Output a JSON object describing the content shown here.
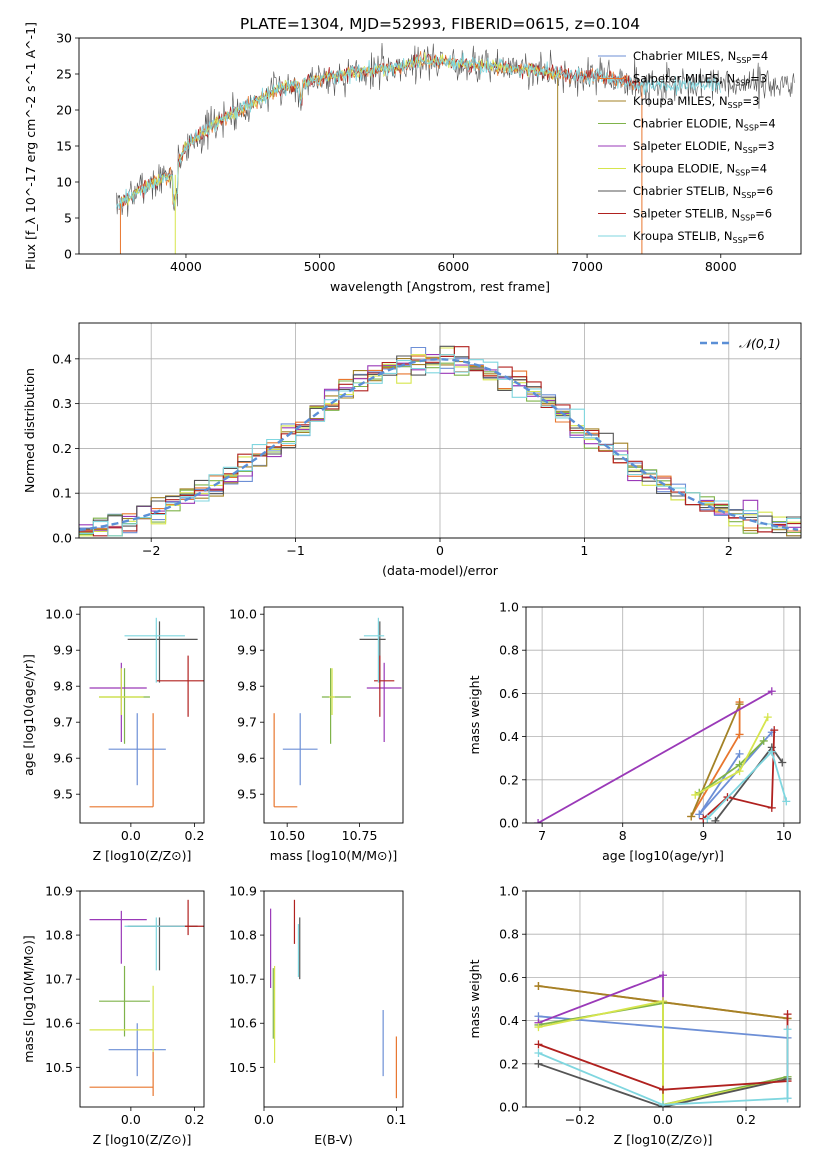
{
  "figure_title": "PLATE=1304, MJD=52993, FIBERID=0615, z=0.104",
  "colors": {
    "Chabrier MILES": "#6d8fd6",
    "Salpeter MILES": "#e8762e",
    "Kroupa MILES": "#a38226",
    "Chabrier ELODIE": "#7fb34a",
    "Salpeter ELODIE": "#9a39b8",
    "Kroupa ELODIE": "#d6e54d",
    "Chabrier STELIB": "#555555",
    "Salpeter STELIB": "#b0211f",
    "Kroupa STELIB": "#7fd6df"
  },
  "chart_data": [
    {
      "id": "spectrum",
      "type": "line",
      "title": "PLATE=1304, MJD=52993, FIBERID=0615, z=0.104",
      "xlabel": "wavelength [Angstrom, rest frame]",
      "ylabel": "Flux [f_λ 10^-17 erg cm^-2 s^-1 A^-1]",
      "xlim": [
        3200,
        8600
      ],
      "ylim": [
        0,
        30
      ],
      "xticks": [
        4000,
        5000,
        6000,
        7000,
        8000
      ],
      "yticks": [
        0,
        5,
        10,
        15,
        20,
        25,
        30
      ],
      "grid": false,
      "legend": "top-right",
      "continuum": {
        "x": [
          3500,
          3700,
          3900,
          4000,
          4100,
          4300,
          4500,
          4700,
          4850,
          5000,
          5200,
          5400,
          5600,
          5800,
          5900,
          6000,
          6200,
          6400,
          6600,
          6800,
          7000,
          7200,
          7400
        ],
        "y": [
          7,
          9.5,
          11,
          15,
          16.5,
          19,
          21,
          23,
          23.5,
          24.5,
          25,
          25.5,
          26,
          27,
          26.8,
          26.5,
          26.2,
          25.8,
          25.5,
          25,
          24.8,
          24.3,
          23.5
        ]
      },
      "series": [
        {
          "name": "Chabrier MILES",
          "nssp": "4"
        },
        {
          "name": "Salpeter MILES",
          "nssp": "3"
        },
        {
          "name": "Kroupa MILES",
          "nssp": "3"
        },
        {
          "name": "Chabrier ELODIE",
          "nssp": "4"
        },
        {
          "name": "Salpeter ELODIE",
          "nssp": "3"
        },
        {
          "name": "Kroupa ELODIE",
          "nssp": "4"
        },
        {
          "name": "Chabrier STELIB",
          "nssp": "6"
        },
        {
          "name": "Salpeter STELIB",
          "nssp": "6"
        },
        {
          "name": "Kroupa STELIB",
          "nssp": "6"
        }
      ]
    },
    {
      "id": "residuals",
      "type": "area",
      "xlabel": "(data-model)/error",
      "ylabel": "Normed distribution",
      "xlim": [
        -2.5,
        2.5
      ],
      "ylim": [
        0,
        0.48
      ],
      "xticks": [
        -2,
        -1,
        0,
        1,
        2
      ],
      "yticks": [
        0.0,
        0.1,
        0.2,
        0.3,
        0.4
      ],
      "grid": true,
      "legend": "top-right",
      "reference_label": "𝒩(0,1)",
      "bin_width": 0.1
    },
    {
      "id": "age_vs_Z",
      "type": "scatter",
      "xlabel": "Z [log10(Z/Z⊙)]",
      "ylabel": "age [log10(age/yr)]",
      "xlim": [
        -0.16,
        0.23
      ],
      "ylim": [
        9.42,
        10.02
      ],
      "xticks": [
        0.0,
        0.2
      ],
      "yticks": [
        9.5,
        9.6,
        9.7,
        9.8,
        9.9,
        10.0
      ],
      "points": [
        {
          "series": "Chabrier MILES",
          "x": 0.02,
          "y": 9.625,
          "xerr": [
            0.09,
            0.09
          ],
          "yerr": [
            0.1,
            0.1
          ]
        },
        {
          "series": "Salpeter MILES",
          "x": 0.07,
          "y": 9.465,
          "xerr": [
            0.2,
            0.0
          ],
          "yerr": [
            0.0,
            0.26
          ]
        },
        {
          "series": "Chabrier ELODIE",
          "x": -0.02,
          "y": 9.77,
          "xerr": [
            0.08,
            0.08
          ],
          "yerr": [
            0.13,
            0.08
          ]
        },
        {
          "series": "Salpeter ELODIE",
          "x": -0.03,
          "y": 9.795,
          "xerr": [
            0.1,
            0.08
          ],
          "yerr": [
            0.15,
            0.07
          ]
        },
        {
          "series": "Kroupa ELODIE",
          "x": -0.03,
          "y": 9.77,
          "xerr": [
            0.07,
            0.07
          ],
          "yerr": [
            0.05,
            0.08
          ]
        },
        {
          "series": "Chabrier STELIB",
          "x": 0.09,
          "y": 9.93,
          "xerr": [
            0.1,
            0.12
          ],
          "yerr": [
            0.12,
            0.05
          ]
        },
        {
          "series": "Salpeter STELIB",
          "x": 0.18,
          "y": 9.815,
          "xerr": [
            0.1,
            0.05
          ],
          "yerr": [
            0.1,
            0.07
          ]
        },
        {
          "series": "Kroupa STELIB",
          "x": 0.08,
          "y": 9.94,
          "xerr": [
            0.1,
            0.09
          ],
          "yerr": [
            0.13,
            0.05
          ]
        }
      ]
    },
    {
      "id": "age_vs_mass",
      "type": "scatter",
      "xlabel": "mass [log10(M/M⊙)]",
      "ylabel": "",
      "xlim": [
        10.42,
        10.9
      ],
      "ylim": [
        9.42,
        10.02
      ],
      "xticks": [
        10.5,
        10.75
      ],
      "yticks": [
        9.5,
        9.6,
        9.7,
        9.8,
        9.9,
        10.0
      ],
      "points": [
        {
          "series": "Chabrier MILES",
          "x": 10.545,
          "y": 9.625,
          "xerr": [
            0.06,
            0.06
          ],
          "yerr": [
            0.1,
            0.1
          ]
        },
        {
          "series": "Salpeter MILES",
          "x": 10.455,
          "y": 9.465,
          "xerr": [
            0.0,
            0.08
          ],
          "yerr": [
            0.0,
            0.26
          ]
        },
        {
          "series": "Chabrier ELODIE",
          "x": 10.65,
          "y": 9.77,
          "xerr": [
            0.03,
            0.07
          ],
          "yerr": [
            0.13,
            0.08
          ]
        },
        {
          "series": "Salpeter ELODIE",
          "x": 10.835,
          "y": 9.795,
          "xerr": [
            0.06,
            0.06
          ],
          "yerr": [
            0.15,
            0.07
          ]
        },
        {
          "series": "Kroupa ELODIE",
          "x": 10.655,
          "y": 9.77,
          "xerr": [
            0.01,
            0.01
          ],
          "yerr": [
            0.05,
            0.08
          ]
        },
        {
          "series": "Chabrier STELIB",
          "x": 10.82,
          "y": 9.93,
          "xerr": [
            0.07,
            0.02
          ],
          "yerr": [
            0.12,
            0.05
          ]
        },
        {
          "series": "Salpeter STELIB",
          "x": 10.82,
          "y": 9.815,
          "xerr": [
            0.02,
            0.05
          ],
          "yerr": [
            0.1,
            0.07
          ]
        },
        {
          "series": "Kroupa STELIB",
          "x": 10.815,
          "y": 9.94,
          "xerr": [
            0.05,
            0.02
          ],
          "yerr": [
            0.13,
            0.05
          ]
        }
      ]
    },
    {
      "id": "weight_vs_age",
      "type": "line",
      "xlabel": "age [log10(age/yr)]",
      "ylabel": "mass weight",
      "xlim": [
        6.8,
        10.2
      ],
      "ylim": [
        0,
        1
      ],
      "xticks": [
        7,
        8,
        9,
        10
      ],
      "yticks": [
        0.0,
        0.2,
        0.4,
        0.6,
        0.8,
        1.0
      ],
      "grid": true,
      "series": [
        {
          "name": "Chabrier MILES",
          "x": [
            9.45,
            8.95,
            9.85
          ],
          "y": [
            0.32,
            0.04,
            0.42
          ]
        },
        {
          "name": "Salpeter MILES",
          "x": [
            9.45,
            9.45,
            8.85
          ],
          "y": [
            0.56,
            0.41,
            0.03
          ]
        },
        {
          "name": "Kroupa MILES",
          "x": [
            9.45,
            8.85
          ],
          "y": [
            0.55,
            0.03
          ]
        },
        {
          "name": "Chabrier ELODIE",
          "x": [
            8.95,
            9.45,
            9.75
          ],
          "y": [
            0.14,
            0.27,
            0.38
          ]
        },
        {
          "name": "Salpeter ELODIE",
          "x": [
            6.95,
            9.85
          ],
          "y": [
            0.0,
            0.61
          ]
        },
        {
          "name": "Kroupa ELODIE",
          "x": [
            8.9,
            9.45,
            9.8
          ],
          "y": [
            0.13,
            0.24,
            0.49
          ]
        },
        {
          "name": "Chabrier STELIB",
          "x": [
            9.15,
            9.85,
            9.98
          ],
          "y": [
            0.01,
            0.35,
            0.28
          ]
        },
        {
          "name": "Salpeter STELIB",
          "x": [
            9.0,
            9.3,
            9.85,
            9.88
          ],
          "y": [
            0.02,
            0.12,
            0.07,
            0.43
          ]
        },
        {
          "name": "Kroupa STELIB",
          "x": [
            9.05,
            9.85,
            10.03
          ],
          "y": [
            0.02,
            0.33,
            0.1
          ]
        }
      ]
    },
    {
      "id": "mass_vs_Z",
      "type": "scatter",
      "xlabel": "Z [log10(Z/Z⊙)]",
      "ylabel": "mass [log10(M/M⊙)]",
      "xlim": [
        -0.16,
        0.23
      ],
      "ylim": [
        10.41,
        10.9
      ],
      "xticks": [
        0.0,
        0.2
      ],
      "yticks": [
        10.5,
        10.6,
        10.7,
        10.8,
        10.9
      ],
      "points": [
        {
          "series": "Chabrier MILES",
          "x": 0.02,
          "y": 10.54,
          "xerr": [
            0.09,
            0.09
          ],
          "yerr": [
            0.06,
            0.06
          ]
        },
        {
          "series": "Salpeter MILES",
          "x": 0.07,
          "y": 10.455,
          "xerr": [
            0.2,
            0.0
          ],
          "yerr": [
            0.02,
            0.08
          ]
        },
        {
          "series": "Chabrier ELODIE",
          "x": -0.02,
          "y": 10.65,
          "xerr": [
            0.08,
            0.08
          ],
          "yerr": [
            0.08,
            0.08
          ]
        },
        {
          "series": "Salpeter ELODIE",
          "x": -0.03,
          "y": 10.835,
          "xerr": [
            0.1,
            0.08
          ],
          "yerr": [
            0.1,
            0.02
          ]
        },
        {
          "series": "Kroupa ELODIE",
          "x": 0.07,
          "y": 10.585,
          "xerr": [
            0.2,
            0.0
          ],
          "yerr": [
            0.05,
            0.1
          ]
        },
        {
          "series": "Chabrier STELIB",
          "x": 0.09,
          "y": 10.82,
          "xerr": [
            0.1,
            0.12
          ],
          "yerr": [
            0.1,
            0.02
          ]
        },
        {
          "series": "Salpeter STELIB",
          "x": 0.18,
          "y": 10.82,
          "xerr": [
            0.1,
            0.05
          ],
          "yerr": [
            0.02,
            0.06
          ]
        },
        {
          "series": "Kroupa STELIB",
          "x": 0.08,
          "y": 10.82,
          "xerr": [
            0.1,
            0.09
          ],
          "yerr": [
            0.1,
            0.02
          ]
        }
      ]
    },
    {
      "id": "mass_vs_EBV",
      "type": "scatter",
      "xlabel": "E(B-V)",
      "ylabel": "",
      "xlim": [
        0.0,
        0.105
      ],
      "ylim": [
        10.41,
        10.9
      ],
      "xticks": [
        0.0,
        0.1
      ],
      "yticks": [
        10.5,
        10.6,
        10.7,
        10.8,
        10.9
      ],
      "points": [
        {
          "series": "Chabrier MILES",
          "x": 0.09,
          "y": 10.555,
          "xerr": [
            0,
            0
          ],
          "yerr": [
            0.075,
            0.075
          ]
        },
        {
          "series": "Salpeter MILES",
          "x": 0.1,
          "y": 10.5,
          "xerr": [
            0,
            0
          ],
          "yerr": [
            0.07,
            0.07
          ]
        },
        {
          "series": "Chabrier ELODIE",
          "x": 0.007,
          "y": 10.645,
          "xerr": [
            0,
            0
          ],
          "yerr": [
            0.08,
            0.08
          ]
        },
        {
          "series": "Salpeter ELODIE",
          "x": 0.005,
          "y": 10.77,
          "xerr": [
            0,
            0
          ],
          "yerr": [
            0.09,
            0.09
          ]
        },
        {
          "series": "Kroupa ELODIE",
          "x": 0.008,
          "y": 10.62,
          "xerr": [
            0,
            0
          ],
          "yerr": [
            0.11,
            0.11
          ]
        },
        {
          "series": "Chabrier STELIB",
          "x": 0.027,
          "y": 10.77,
          "xerr": [
            0,
            0
          ],
          "yerr": [
            0.07,
            0.07
          ]
        },
        {
          "series": "Salpeter STELIB",
          "x": 0.023,
          "y": 10.83,
          "xerr": [
            0,
            0
          ],
          "yerr": [
            0.05,
            0.05
          ]
        },
        {
          "series": "Kroupa STELIB",
          "x": 0.026,
          "y": 10.765,
          "xerr": [
            0,
            0
          ],
          "yerr": [
            0.06,
            0.06
          ]
        }
      ]
    },
    {
      "id": "weight_vs_Z",
      "type": "line",
      "xlabel": "Z [log10(Z/Z⊙)]",
      "ylabel": "mass weight",
      "xlim": [
        -0.33,
        0.33
      ],
      "ylim": [
        0,
        1
      ],
      "xticks": [
        -0.2,
        0.0,
        0.2
      ],
      "yticks": [
        0.0,
        0.2,
        0.4,
        0.6,
        0.8,
        1.0
      ],
      "grid": true,
      "series": [
        {
          "name": "Chabrier MILES",
          "x": [
            -0.3,
            0.3,
            0.3
          ],
          "y": [
            0.42,
            0.32,
            0.04
          ]
        },
        {
          "name": "Salpeter MILES",
          "x": [
            -0.3,
            0.3
          ],
          "y": [
            0.56,
            0.41
          ]
        },
        {
          "name": "Kroupa MILES",
          "x": [
            -0.3,
            0.3
          ],
          "y": [
            0.56,
            0.41
          ]
        },
        {
          "name": "Chabrier ELODIE",
          "x": [
            -0.3,
            0.0,
            0.0,
            0.3
          ],
          "y": [
            0.38,
            0.48,
            0.01,
            0.14
          ]
        },
        {
          "name": "Salpeter ELODIE",
          "x": [
            -0.3,
            0.0,
            0.0
          ],
          "y": [
            0.39,
            0.61,
            0.49
          ]
        },
        {
          "name": "Kroupa ELODIE",
          "x": [
            -0.3,
            0.0,
            0.0,
            0.3
          ],
          "y": [
            0.37,
            0.49,
            0.01,
            0.13
          ]
        },
        {
          "name": "Chabrier STELIB",
          "x": [
            -0.3,
            0.0,
            0.3
          ],
          "y": [
            0.2,
            0.0,
            0.13
          ]
        },
        {
          "name": "Salpeter STELIB",
          "x": [
            -0.3,
            0.0,
            0.3,
            0.3
          ],
          "y": [
            0.29,
            0.08,
            0.12,
            0.43
          ]
        },
        {
          "name": "Kroupa STELIB",
          "x": [
            -0.3,
            0.0,
            0.3,
            0.3
          ],
          "y": [
            0.25,
            0.01,
            0.04,
            0.36
          ]
        }
      ]
    }
  ]
}
